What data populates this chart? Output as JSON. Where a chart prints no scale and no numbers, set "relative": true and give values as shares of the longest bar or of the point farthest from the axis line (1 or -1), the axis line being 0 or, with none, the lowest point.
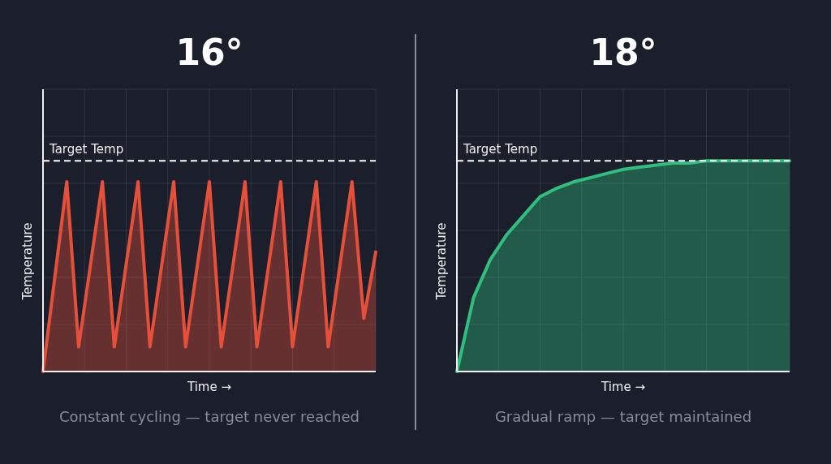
{
  "chart_data": [
    {
      "type": "area",
      "relative": true,
      "title": "16°",
      "xlabel": "Time →",
      "ylabel": "Temperature",
      "grid": true,
      "categories": [
        null,
        null,
        null,
        null,
        null,
        null,
        null,
        null,
        null,
        null,
        null,
        null,
        null,
        null,
        null,
        null,
        null,
        null,
        null,
        null,
        null,
        null,
        null,
        null,
        null,
        null,
        null,
        null,
        null
      ],
      "series": [
        {
          "color": "#e5503a",
          "values": [
            0,
            0.5,
            1,
            0.13,
            0.565,
            1,
            0.13,
            0.565,
            1,
            0.13,
            0.565,
            1,
            0.13,
            0.565,
            1,
            0.13,
            0.565,
            1,
            0.13,
            0.565,
            1,
            0.13,
            0.565,
            1,
            0.13,
            0.565,
            1,
            0.28,
            0.63
          ]
        }
      ],
      "ref_lines": [
        {
          "axis": "y",
          "value": 1.11,
          "label": "Target Temp",
          "color": "#ffffff",
          "line_style": "dashed"
        }
      ],
      "annotations": [
        "Constant cycling — target never reached"
      ]
    },
    {
      "type": "area",
      "relative": true,
      "title": "18°",
      "xlabel": "Time →",
      "ylabel": "Temperature",
      "grid": true,
      "categories": [
        null,
        null,
        null,
        null,
        null,
        null,
        null,
        null,
        null,
        null,
        null,
        null,
        null,
        null,
        null,
        null,
        null,
        null,
        null,
        null,
        null
      ],
      "series": [
        {
          "color": "#2fc07f",
          "values": [
            0,
            0.35,
            0.53,
            0.65,
            0.74,
            0.83,
            0.87,
            0.9,
            0.92,
            0.94,
            0.96,
            0.97,
            0.98,
            0.99,
            0.99,
            1,
            1,
            1,
            1,
            1,
            1
          ]
        }
      ],
      "ref_lines": [
        {
          "axis": "y",
          "value": 1,
          "label": "Target Temp",
          "color": "#ffffff",
          "line_style": "dashed"
        }
      ],
      "annotations": [
        "Gradual ramp — target maintained"
      ]
    }
  ]
}
